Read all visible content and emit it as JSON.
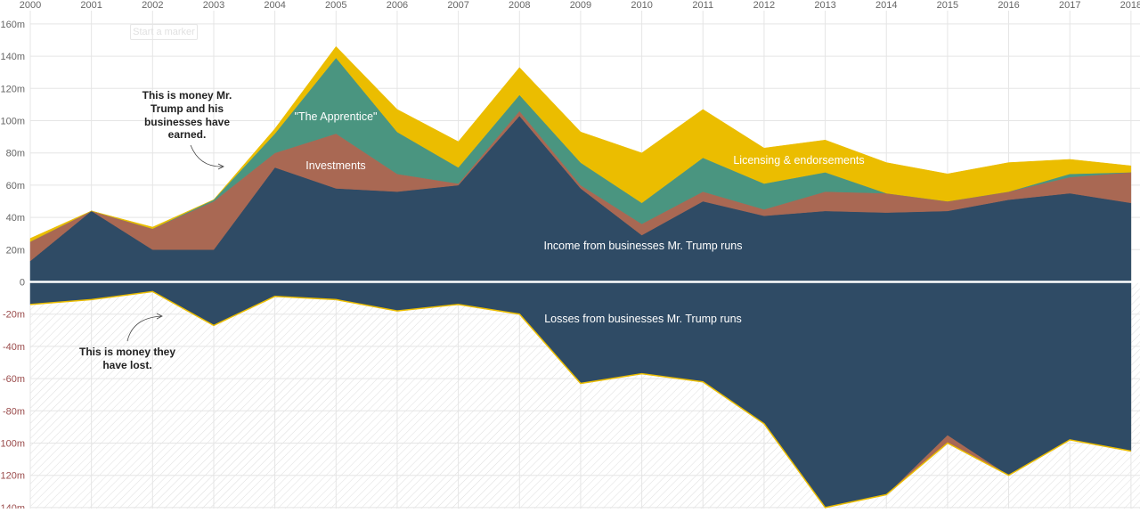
{
  "ui": {
    "start_button_label": "Start a marker"
  },
  "annotations": {
    "earned": [
      "This is money Mr.",
      "Trump and his",
      "businesses have",
      "earned."
    ],
    "lost": [
      "This is money they",
      "have lost."
    ]
  },
  "series_labels": {
    "apprentice": "\"The Apprentice\"",
    "investments": "Investments",
    "licensing": "Licensing & endorsements",
    "income": "Income from businesses Mr. Trump runs",
    "losses": "Losses from businesses Mr. Trump runs"
  },
  "colors": {
    "income": "#2f4b65",
    "investments": "#a96853",
    "apprentice": "#4a9580",
    "licensing": "#ebbd00",
    "losses": "#2f4b65",
    "loss_edge": "#ebbd00",
    "grid": "#e5e5e5",
    "zero_line": "#ffffff"
  },
  "chart_data": {
    "type": "area",
    "x": [
      2000,
      2001,
      2002,
      2003,
      2004,
      2005,
      2006,
      2007,
      2008,
      2009,
      2010,
      2011,
      2012,
      2013,
      2014,
      2015,
      2016,
      2017,
      2018
    ],
    "x_tick_labels": [
      "2000",
      "2001",
      "2002",
      "2003",
      "2004",
      "2005",
      "2006",
      "2007",
      "2008",
      "2009",
      "2010",
      "2011",
      "2012",
      "2013",
      "2014",
      "2015",
      "2016",
      "2017",
      "2018"
    ],
    "y_ticks": [
      160,
      140,
      120,
      100,
      80,
      60,
      40,
      20,
      0,
      -20,
      -40,
      -60,
      -80,
      -100,
      -120,
      -140
    ],
    "y_tick_labels": [
      "160m",
      "140m",
      "120m",
      "100m",
      "80m",
      "60m",
      "40m",
      "20m",
      "0",
      "-20m",
      "-40m",
      "-60m",
      "-80m",
      "-100m",
      "-120m",
      "-140m"
    ],
    "ylim": [
      -140,
      160
    ],
    "unit": "millions of dollars",
    "stacked": true,
    "series": [
      {
        "name": "Income from businesses Mr. Trump runs",
        "key": "income",
        "values": [
          13,
          44,
          20,
          20,
          71,
          58,
          56,
          60,
          103,
          58,
          29,
          50,
          41,
          44,
          43,
          44,
          51,
          55,
          49
        ]
      },
      {
        "name": "Investments",
        "key": "investments",
        "values": [
          12,
          0,
          13,
          30,
          9,
          34,
          11,
          1,
          3,
          2,
          7,
          6,
          4,
          12,
          12,
          6,
          5,
          10,
          19
        ]
      },
      {
        "name": "\"The Apprentice\"",
        "key": "apprentice",
        "values": [
          0,
          0,
          0,
          1,
          12,
          47,
          26,
          10,
          10,
          14,
          13,
          21,
          16,
          12,
          0,
          0,
          0,
          2,
          0
        ]
      },
      {
        "name": "Licensing & endorsements",
        "key": "licensing",
        "values": [
          2,
          0,
          1,
          0,
          3,
          7,
          14,
          16,
          17,
          19,
          31,
          30,
          22,
          20,
          19,
          17,
          18,
          9,
          4
        ]
      },
      {
        "name": "Losses from businesses Mr. Trump runs",
        "key": "losses",
        "values": [
          -14,
          -11,
          -6,
          -27,
          -9,
          -11,
          -18,
          -14,
          -20,
          -63,
          -57,
          -62,
          -88,
          -140,
          -132,
          -95,
          -120,
          -98,
          -105
        ]
      },
      {
        "name": "",
        "key": "loss_investments",
        "values": [
          0,
          0,
          0,
          0,
          0,
          0,
          0,
          0,
          0,
          0,
          0,
          0,
          0,
          0,
          0,
          -5,
          0,
          0,
          0
        ]
      }
    ],
    "grid": true,
    "legend": "inline labels"
  }
}
